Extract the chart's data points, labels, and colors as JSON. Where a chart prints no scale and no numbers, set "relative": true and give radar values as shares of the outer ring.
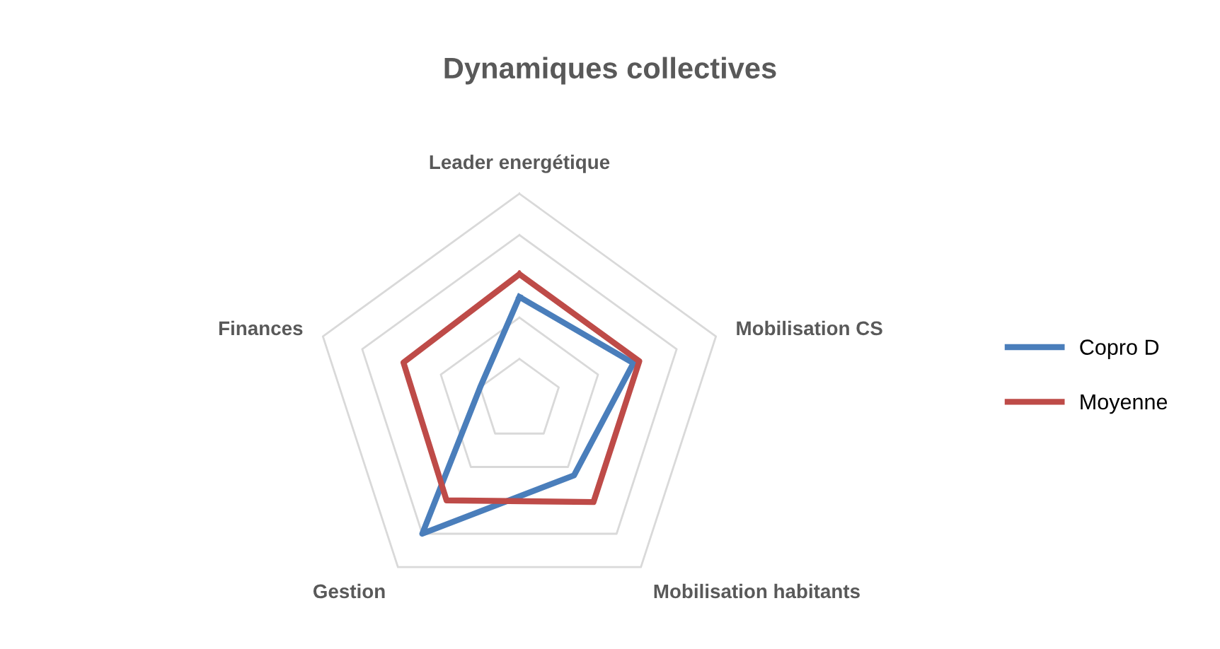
{
  "chart_data": {
    "type": "radar",
    "title": "Dynamiques collectives",
    "relative": true,
    "grid": true,
    "legend": "right",
    "marker": "none",
    "categories": [
      "Leader energétique",
      "Mobilisation CS",
      "Mobilisation habitants",
      "Gestion",
      "Finances"
    ],
    "series": [
      {
        "name": "Copro D",
        "color": "#4a7ebb",
        "values": [
          0.5,
          0.58,
          0.45,
          0.8,
          0.2
        ]
      },
      {
        "name": "Moyenne",
        "color": "#be4b48",
        "values": [
          0.61,
          0.61,
          0.61,
          0.6,
          0.59
        ]
      }
    ]
  }
}
